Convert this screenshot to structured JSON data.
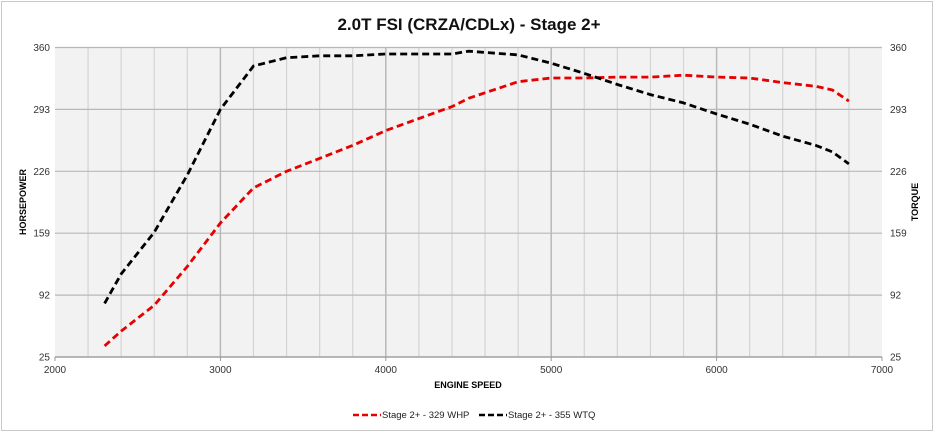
{
  "chart_data": {
    "type": "line",
    "title": "2.0T FSI (CRZA/CDLx) - Stage 2+",
    "xlabel": "ENGINE SPEED",
    "ylabel": "HORSEPOWER",
    "y2label": "TORQUE",
    "xlim": [
      2000,
      7000
    ],
    "ylim": [
      25,
      360
    ],
    "xticks": [
      "2000",
      "3000",
      "4000",
      "5000",
      "6000",
      "7000"
    ],
    "yticks": [
      "25",
      "92",
      "159",
      "226",
      "293",
      "360"
    ],
    "grid": true,
    "legend_position": "bottom",
    "colors": {
      "plot_bg": "#f2f2f2",
      "grid": "#d4d4d4",
      "grid_major": "#b8b8b8"
    },
    "x": [
      2300,
      2400,
      2600,
      2800,
      3000,
      3200,
      3400,
      3600,
      3800,
      4000,
      4200,
      4400,
      4500,
      4800,
      5000,
      5200,
      5400,
      5600,
      5800,
      6000,
      6200,
      6400,
      6600,
      6700,
      6800
    ],
    "series": [
      {
        "name": "Stage 2+ - 329 WHP",
        "color": "#e60000",
        "values": [
          37,
          53,
          81,
          123,
          170,
          208,
          226,
          240,
          254,
          270,
          283,
          296,
          305,
          323,
          327,
          327,
          328,
          328,
          330,
          328,
          327,
          322,
          318,
          314,
          302
        ]
      },
      {
        "name": "Stage 2+ - 355 WTQ",
        "color": "#000000",
        "values": [
          83,
          115,
          160,
          222,
          293,
          340,
          349,
          351,
          351,
          353,
          353,
          353,
          356,
          352,
          343,
          332,
          320,
          309,
          300,
          288,
          277,
          264,
          254,
          247,
          234
        ]
      }
    ]
  }
}
